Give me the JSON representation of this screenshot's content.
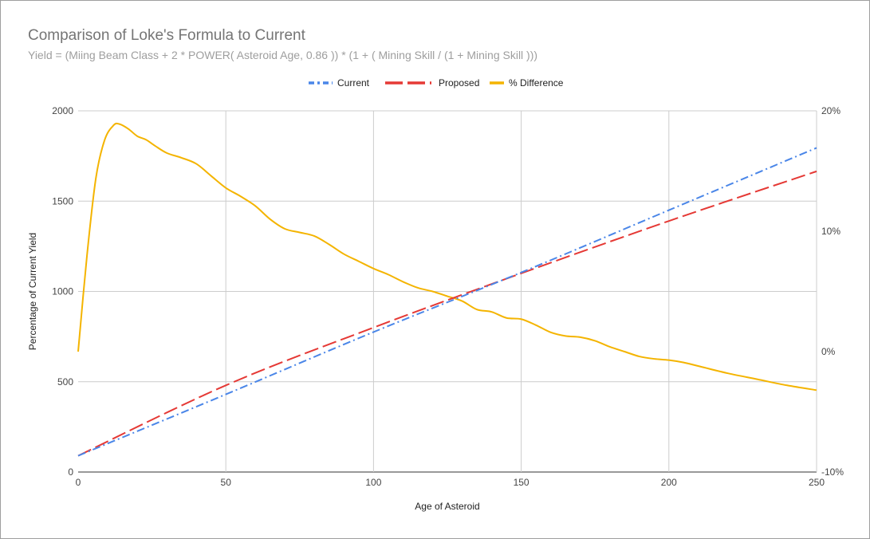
{
  "chart_data": {
    "type": "line",
    "title": "Comparison of Loke's Formula to Current",
    "subtitle": "Yield = (Miing Beam Class + 2 * POWER( Asteroid Age, 0.86 )) * (1 + ( Mining Skill / (1 + Mining Skill )))",
    "xlabel": "Age of Asteroid",
    "ylabel": "Percentage of Current Yield",
    "xlim": [
      0,
      250
    ],
    "ylim": [
      0,
      2000
    ],
    "y2lim": [
      -0.1,
      0.2
    ],
    "x_ticks": [
      0,
      50,
      100,
      150,
      200,
      250
    ],
    "x_tick_labels": [
      "0",
      "50",
      "100",
      "150",
      "200",
      "250"
    ],
    "y_ticks": [
      0,
      500,
      1000,
      1500,
      2000
    ],
    "y_tick_labels": [
      "0",
      "500",
      "1000",
      "1500",
      "2000"
    ],
    "y2_ticks": [
      -0.1,
      0,
      0.1,
      0.2
    ],
    "y2_tick_labels": [
      "-10%",
      "0%",
      "10%",
      "20%"
    ],
    "grid": true,
    "legend_position": "top",
    "series": [
      {
        "name": "Current",
        "axis": "left",
        "color": "#4a86e8",
        "dash": "dash-dot",
        "x": [
          0,
          50,
          100,
          150,
          200,
          250
        ],
        "values": [
          90,
          430,
          775,
          1105,
          1450,
          1795
        ]
      },
      {
        "name": "Proposed",
        "axis": "left",
        "color": "#e53935",
        "dash": "long-dash",
        "x": [
          0,
          50,
          100,
          150,
          200,
          250
        ],
        "values": [
          90,
          480,
          800,
          1100,
          1390,
          1665
        ]
      },
      {
        "name": "% Difference",
        "axis": "right",
        "color": "#f4b400",
        "dash": "solid",
        "x": [
          0,
          3,
          6,
          9,
          12,
          14,
          17,
          20,
          23,
          26,
          30,
          35,
          40,
          45,
          50,
          55,
          60,
          65,
          70,
          75,
          80,
          85,
          90,
          95,
          100,
          105,
          110,
          115,
          120,
          125,
          130,
          135,
          140,
          145,
          150,
          155,
          160,
          165,
          170,
          175,
          180,
          185,
          190,
          195,
          200,
          205,
          210,
          220,
          230,
          240,
          250
        ],
        "values": [
          0.0,
          0.08,
          0.144,
          0.176,
          0.188,
          0.189,
          0.185,
          0.179,
          0.176,
          0.171,
          0.165,
          0.161,
          0.156,
          0.146,
          0.136,
          0.129,
          0.121,
          0.11,
          0.102,
          0.099,
          0.096,
          0.089,
          0.081,
          0.075,
          0.069,
          0.064,
          0.058,
          0.053,
          0.05,
          0.046,
          0.042,
          0.035,
          0.0,
          0.0,
          0.0,
          0.0,
          0.0,
          0.0,
          0.0,
          0.0,
          0.0,
          0.0,
          0.0,
          0.0,
          0.0,
          0.0,
          0.0,
          0.0,
          0.0,
          0.0,
          0.0
        ]
      }
    ]
  }
}
